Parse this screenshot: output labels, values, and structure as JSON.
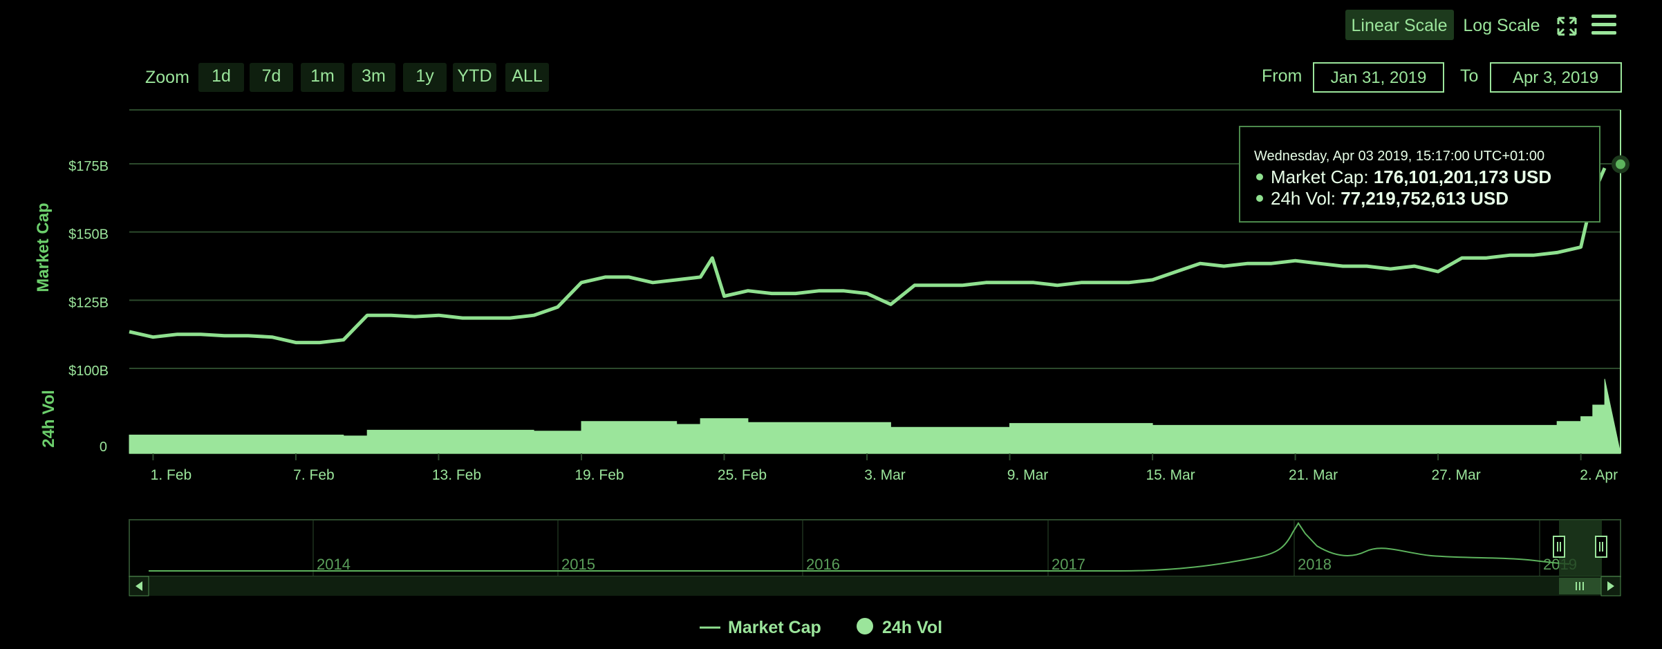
{
  "toolbar": {
    "linear_scale_label": "Linear Scale",
    "log_scale_label": "Log Scale",
    "zoom_label": "Zoom",
    "zoom_buttons": [
      "1d",
      "7d",
      "1m",
      "3m",
      "1y",
      "YTD",
      "ALL"
    ],
    "from_label": "From",
    "from_value": "Jan 31, 2019",
    "to_label": "To",
    "to_value": "Apr 3, 2019",
    "expand_icon": "expand-icon",
    "menu_icon": "menu-icon"
  },
  "tooltip": {
    "date": "Wednesday, Apr 03 2019, 15:17:00 UTC+01:00",
    "market_cap_label": "Market Cap: ",
    "market_cap_value": "176,101,201,173 USD",
    "vol_label": "24h Vol: ",
    "vol_value": "77,219,752,613 USD"
  },
  "navigator": {
    "years": [
      "2014",
      "2015",
      "2016",
      "2017",
      "2018",
      "2019"
    ]
  },
  "legend": {
    "market_cap": "Market Cap",
    "vol": "24h Vol"
  },
  "colors": {
    "accent": "#9be59b",
    "line": "#8fe08f",
    "grid": "#2c4a2c",
    "background": "#000000"
  },
  "chart_data": {
    "type": "line",
    "xlabel": "",
    "x_ticks": [
      "1. Feb",
      "7. Feb",
      "13. Feb",
      "19. Feb",
      "25. Feb",
      "3. Mar",
      "9. Mar",
      "15. Mar",
      "21. Mar",
      "27. Mar",
      "2. Apr"
    ],
    "x_range": [
      "2019-01-31",
      "2019-04-03"
    ],
    "market_cap_axis": {
      "label": "Market Cap",
      "ticks": [
        "$100B",
        "$125B",
        "$150B",
        "$175B"
      ],
      "ylim": [
        100,
        175
      ]
    },
    "vol_axis": {
      "label": "24h Vol",
      "ticks": [
        "0"
      ]
    },
    "series": [
      {
        "name": "Market Cap",
        "unit": "billion USD",
        "points": [
          [
            "2019-01-31",
            116
          ],
          [
            "2019-02-01",
            114
          ],
          [
            "2019-02-02",
            115
          ],
          [
            "2019-02-03",
            115
          ],
          [
            "2019-02-04",
            114.5
          ],
          [
            "2019-02-05",
            114.5
          ],
          [
            "2019-02-06",
            114
          ],
          [
            "2019-02-07",
            112
          ],
          [
            "2019-02-08",
            112
          ],
          [
            "2019-02-09",
            113
          ],
          [
            "2019-02-10",
            122
          ],
          [
            "2019-02-11",
            122
          ],
          [
            "2019-02-12",
            121.5
          ],
          [
            "2019-02-13",
            122
          ],
          [
            "2019-02-14",
            121
          ],
          [
            "2019-02-15",
            121
          ],
          [
            "2019-02-16",
            121
          ],
          [
            "2019-02-17",
            122
          ],
          [
            "2019-02-18",
            125
          ],
          [
            "2019-02-19",
            134
          ],
          [
            "2019-02-20",
            136
          ],
          [
            "2019-02-21",
            136
          ],
          [
            "2019-02-22",
            134
          ],
          [
            "2019-02-23",
            135
          ],
          [
            "2019-02-24",
            136
          ],
          [
            "2019-02-24T12:00",
            143
          ],
          [
            "2019-02-25",
            129
          ],
          [
            "2019-02-26",
            131
          ],
          [
            "2019-02-27",
            130
          ],
          [
            "2019-02-28",
            130
          ],
          [
            "2019-03-01",
            131
          ],
          [
            "2019-03-02",
            131
          ],
          [
            "2019-03-03",
            130
          ],
          [
            "2019-03-04",
            126
          ],
          [
            "2019-03-05",
            133
          ],
          [
            "2019-03-06",
            133
          ],
          [
            "2019-03-07",
            133
          ],
          [
            "2019-03-08",
            134
          ],
          [
            "2019-03-09",
            134
          ],
          [
            "2019-03-10",
            134
          ],
          [
            "2019-03-11",
            133
          ],
          [
            "2019-03-12",
            134
          ],
          [
            "2019-03-13",
            134
          ],
          [
            "2019-03-14",
            134
          ],
          [
            "2019-03-15",
            135
          ],
          [
            "2019-03-16",
            138
          ],
          [
            "2019-03-17",
            141
          ],
          [
            "2019-03-18",
            140
          ],
          [
            "2019-03-19",
            141
          ],
          [
            "2019-03-20",
            141
          ],
          [
            "2019-03-21",
            142
          ],
          [
            "2019-03-22",
            141
          ],
          [
            "2019-03-23",
            140
          ],
          [
            "2019-03-24",
            140
          ],
          [
            "2019-03-25",
            139
          ],
          [
            "2019-03-26",
            140
          ],
          [
            "2019-03-27",
            138
          ],
          [
            "2019-03-28",
            143
          ],
          [
            "2019-03-29",
            143
          ],
          [
            "2019-03-30",
            144
          ],
          [
            "2019-03-31",
            144
          ],
          [
            "2019-04-01",
            145
          ],
          [
            "2019-04-02",
            147
          ],
          [
            "2019-04-02T12:00",
            166
          ],
          [
            "2019-04-03",
            176
          ]
        ]
      },
      {
        "name": "24h Vol",
        "unit": "billion USD",
        "points": [
          [
            "2019-01-31",
            19
          ],
          [
            "2019-02-05",
            19
          ],
          [
            "2019-02-09",
            18
          ],
          [
            "2019-02-10",
            24
          ],
          [
            "2019-02-15",
            24
          ],
          [
            "2019-02-17",
            23
          ],
          [
            "2019-02-19",
            33
          ],
          [
            "2019-02-23",
            30
          ],
          [
            "2019-02-24",
            36
          ],
          [
            "2019-02-26",
            32
          ],
          [
            "2019-03-04",
            27
          ],
          [
            "2019-03-09",
            31
          ],
          [
            "2019-03-15",
            29
          ],
          [
            "2019-03-21",
            29
          ],
          [
            "2019-03-27",
            29
          ],
          [
            "2019-03-31",
            29
          ],
          [
            "2019-04-01",
            33
          ],
          [
            "2019-04-02",
            38
          ],
          [
            "2019-04-02T12:00",
            50
          ],
          [
            "2019-04-03",
            77
          ]
        ]
      }
    ],
    "tooltip_point": {
      "date": "2019-04-03T15:17:00",
      "market_cap": 176.1,
      "vol": 77.22
    },
    "legend_placement": "bottom-center"
  }
}
